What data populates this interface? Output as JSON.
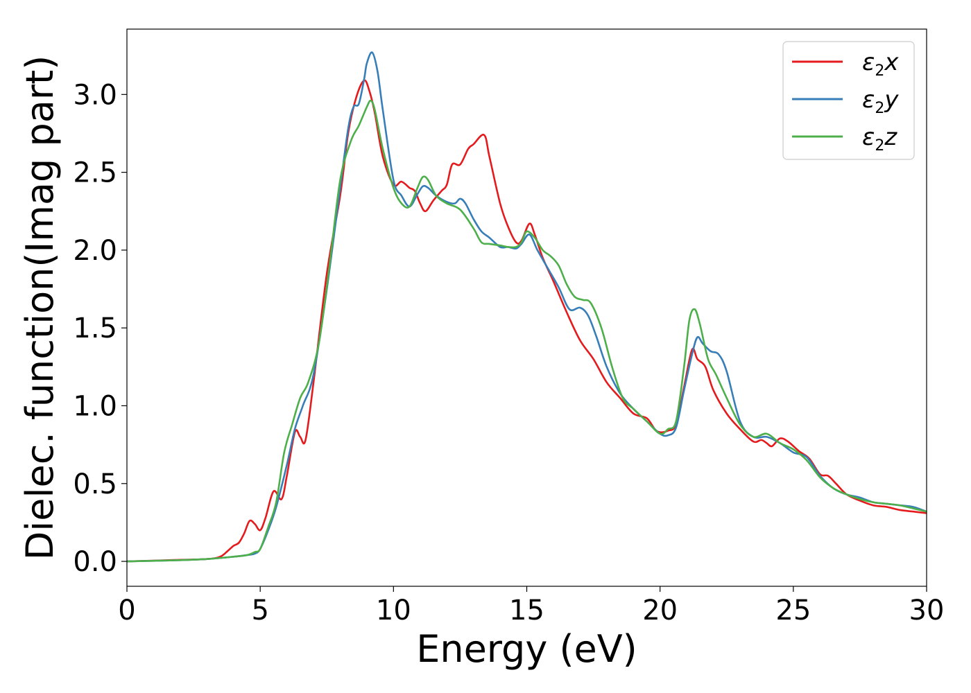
{
  "chart_data": {
    "type": "line",
    "title": "",
    "xlabel": "Energy (eV)",
    "ylabel": "Dielec. function(Imag part)",
    "xlim": [
      0,
      30
    ],
    "ylim": [
      -0.16,
      3.42
    ],
    "xticks": [
      0,
      5,
      10,
      15,
      20,
      25,
      30
    ],
    "yticks": [
      0.0,
      0.5,
      1.0,
      1.5,
      2.0,
      2.5,
      3.0
    ],
    "xtick_labels": [
      "0",
      "5",
      "10",
      "15",
      "20",
      "25",
      "30"
    ],
    "ytick_labels": [
      "0.0",
      "0.5",
      "1.0",
      "1.5",
      "2.0",
      "2.5",
      "3.0"
    ],
    "grid": false,
    "legend_position": "top-right",
    "series": [
      {
        "name": "ε2x",
        "legend": {
          "base": "ε",
          "sub": "2",
          "suffix": "x"
        },
        "color": "#e41a1c",
        "x": [
          0,
          2,
          3,
          3.5,
          3.8,
          4.0,
          4.2,
          4.4,
          4.6,
          4.8,
          5.0,
          5.2,
          5.5,
          5.8,
          6.0,
          6.3,
          6.5,
          6.7,
          7.0,
          7.5,
          8.0,
          8.3,
          8.6,
          8.9,
          9.1,
          9.3,
          9.6,
          10.0,
          10.3,
          10.6,
          10.8,
          11.0,
          11.2,
          11.5,
          11.8,
          12.0,
          12.2,
          12.5,
          12.8,
          13.0,
          13.4,
          13.6,
          14.0,
          14.3,
          14.6,
          14.8,
          15.1,
          15.3,
          15.6,
          16.0,
          16.5,
          17.0,
          17.5,
          18.0,
          18.5,
          19.0,
          19.5,
          19.8,
          20.0,
          20.3,
          20.6,
          20.9,
          21.2,
          21.4,
          21.7,
          22.0,
          22.5,
          23.0,
          23.5,
          23.8,
          24.0,
          24.2,
          24.5,
          24.8,
          25.2,
          25.6,
          26.0,
          26.3,
          26.6,
          27.0,
          27.5,
          28.0,
          28.5,
          29.0,
          29.5,
          30.0
        ],
        "y": [
          0.0,
          0.01,
          0.015,
          0.03,
          0.07,
          0.1,
          0.12,
          0.18,
          0.26,
          0.24,
          0.2,
          0.28,
          0.45,
          0.4,
          0.55,
          0.83,
          0.8,
          0.78,
          1.15,
          1.85,
          2.35,
          2.75,
          2.98,
          3.09,
          3.02,
          2.88,
          2.6,
          2.42,
          2.44,
          2.4,
          2.38,
          2.3,
          2.25,
          2.32,
          2.38,
          2.42,
          2.55,
          2.55,
          2.65,
          2.68,
          2.74,
          2.6,
          2.3,
          2.15,
          2.05,
          2.06,
          2.17,
          2.1,
          1.95,
          1.8,
          1.6,
          1.42,
          1.3,
          1.15,
          1.05,
          0.95,
          0.92,
          0.85,
          0.83,
          0.84,
          0.88,
          1.12,
          1.36,
          1.3,
          1.25,
          1.1,
          0.95,
          0.85,
          0.77,
          0.78,
          0.76,
          0.74,
          0.79,
          0.77,
          0.71,
          0.66,
          0.56,
          0.55,
          0.5,
          0.43,
          0.39,
          0.36,
          0.35,
          0.33,
          0.32,
          0.31
        ]
      },
      {
        "name": "ε2y",
        "legend": {
          "base": "ε",
          "sub": "2",
          "suffix": "y"
        },
        "color": "#377eb8",
        "x": [
          0,
          2,
          3,
          4,
          4.5,
          4.8,
          5.0,
          5.3,
          5.6,
          6.0,
          6.3,
          6.6,
          7.0,
          7.5,
          8.0,
          8.3,
          8.5,
          8.7,
          8.9,
          9.0,
          9.2,
          9.4,
          9.6,
          10.0,
          10.3,
          10.6,
          10.9,
          11.1,
          11.3,
          11.6,
          12.0,
          12.3,
          12.5,
          12.7,
          13.0,
          13.3,
          13.6,
          14.0,
          14.3,
          14.6,
          14.8,
          15.1,
          15.4,
          15.8,
          16.2,
          16.6,
          17.0,
          17.3,
          17.6,
          18.0,
          18.5,
          19.0,
          19.5,
          20.0,
          20.3,
          20.6,
          20.9,
          21.2,
          21.4,
          21.6,
          21.9,
          22.2,
          22.5,
          23.0,
          23.5,
          24.0,
          24.5,
          25.0,
          25.5,
          26.0,
          26.5,
          27.0,
          27.5,
          28.0,
          28.5,
          29.0,
          29.5,
          30.0
        ],
        "y": [
          0.0,
          0.008,
          0.015,
          0.03,
          0.04,
          0.05,
          0.08,
          0.2,
          0.35,
          0.62,
          0.85,
          1.0,
          1.2,
          1.75,
          2.4,
          2.78,
          2.92,
          2.94,
          3.1,
          3.2,
          3.27,
          3.15,
          2.9,
          2.45,
          2.35,
          2.28,
          2.36,
          2.41,
          2.4,
          2.35,
          2.31,
          2.3,
          2.33,
          2.3,
          2.2,
          2.12,
          2.08,
          2.02,
          2.02,
          2.01,
          2.04,
          2.1,
          2.0,
          1.88,
          1.76,
          1.62,
          1.63,
          1.58,
          1.45,
          1.25,
          1.08,
          0.98,
          0.9,
          0.82,
          0.81,
          0.86,
          1.1,
          1.33,
          1.44,
          1.4,
          1.35,
          1.33,
          1.22,
          0.9,
          0.8,
          0.8,
          0.76,
          0.7,
          0.67,
          0.55,
          0.47,
          0.43,
          0.41,
          0.38,
          0.37,
          0.36,
          0.35,
          0.32
        ]
      },
      {
        "name": "ε2z",
        "legend": {
          "base": "ε",
          "sub": "2",
          "suffix": "z"
        },
        "color": "#4daf4a",
        "x": [
          0,
          2,
          3,
          4,
          4.5,
          4.8,
          5.0,
          5.3,
          5.6,
          5.9,
          6.2,
          6.5,
          6.8,
          7.2,
          7.6,
          8.0,
          8.4,
          8.7,
          9.0,
          9.15,
          9.3,
          9.6,
          10.0,
          10.3,
          10.6,
          10.9,
          11.1,
          11.3,
          11.6,
          12.0,
          12.5,
          13.0,
          13.3,
          13.6,
          14.0,
          14.3,
          14.6,
          14.8,
          15.0,
          15.3,
          15.6,
          15.9,
          16.2,
          16.5,
          16.8,
          17.1,
          17.4,
          17.8,
          18.2,
          18.6,
          19.0,
          19.5,
          20.0,
          20.3,
          20.6,
          20.9,
          21.1,
          21.3,
          21.5,
          21.8,
          22.1,
          22.5,
          23.0,
          23.5,
          24.0,
          24.5,
          25.0,
          25.5,
          26.0,
          26.5,
          27.0,
          27.5,
          28.0,
          28.5,
          29.0,
          29.5,
          30.0
        ],
        "y": [
          0.0,
          0.008,
          0.015,
          0.03,
          0.04,
          0.06,
          0.08,
          0.22,
          0.38,
          0.7,
          0.88,
          1.05,
          1.15,
          1.4,
          1.9,
          2.45,
          2.7,
          2.8,
          2.92,
          2.96,
          2.9,
          2.65,
          2.4,
          2.3,
          2.28,
          2.4,
          2.47,
          2.45,
          2.35,
          2.3,
          2.26,
          2.14,
          2.05,
          2.04,
          2.03,
          2.02,
          2.02,
          2.05,
          2.12,
          2.08,
          2.0,
          1.96,
          1.9,
          1.78,
          1.7,
          1.68,
          1.66,
          1.5,
          1.25,
          1.05,
          0.98,
          0.9,
          0.82,
          0.85,
          0.9,
          1.25,
          1.55,
          1.62,
          1.52,
          1.3,
          1.2,
          1.05,
          0.88,
          0.8,
          0.82,
          0.76,
          0.72,
          0.65,
          0.54,
          0.47,
          0.43,
          0.4,
          0.38,
          0.37,
          0.36,
          0.34,
          0.32
        ]
      }
    ]
  }
}
